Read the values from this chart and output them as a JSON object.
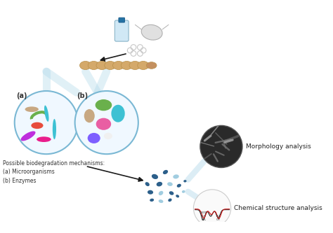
{
  "title": "",
  "background_color": "#ffffff",
  "label_text": "Possible biodegradation mechanisms:\n(a) Microorganisms\n(b) Enzymes",
  "morphology_label": "Morphology analysis",
  "chemical_label": "Chemical structure analysis",
  "circle_a_label": "(a)",
  "circle_b_label": "(b)",
  "arrow_color": "#1a1a1a",
  "circle_edge_color": "#7ab8d4",
  "circle_fill": "#f0f8ff",
  "microbe_colors": [
    "#c8a882",
    "#6ab04c",
    "#3dc1d3",
    "#e84393",
    "#f0932b",
    "#be2edd",
    "#7ed6df"
  ],
  "enzyme_colors": [
    "#6ab04c",
    "#3dc1d3",
    "#e84393",
    "#c8a882",
    "#7ab8d4",
    "#f5f5f5",
    "#7d5fff"
  ],
  "fragment_color": "#2c5f8a",
  "connect_color": "#a8d4e8"
}
